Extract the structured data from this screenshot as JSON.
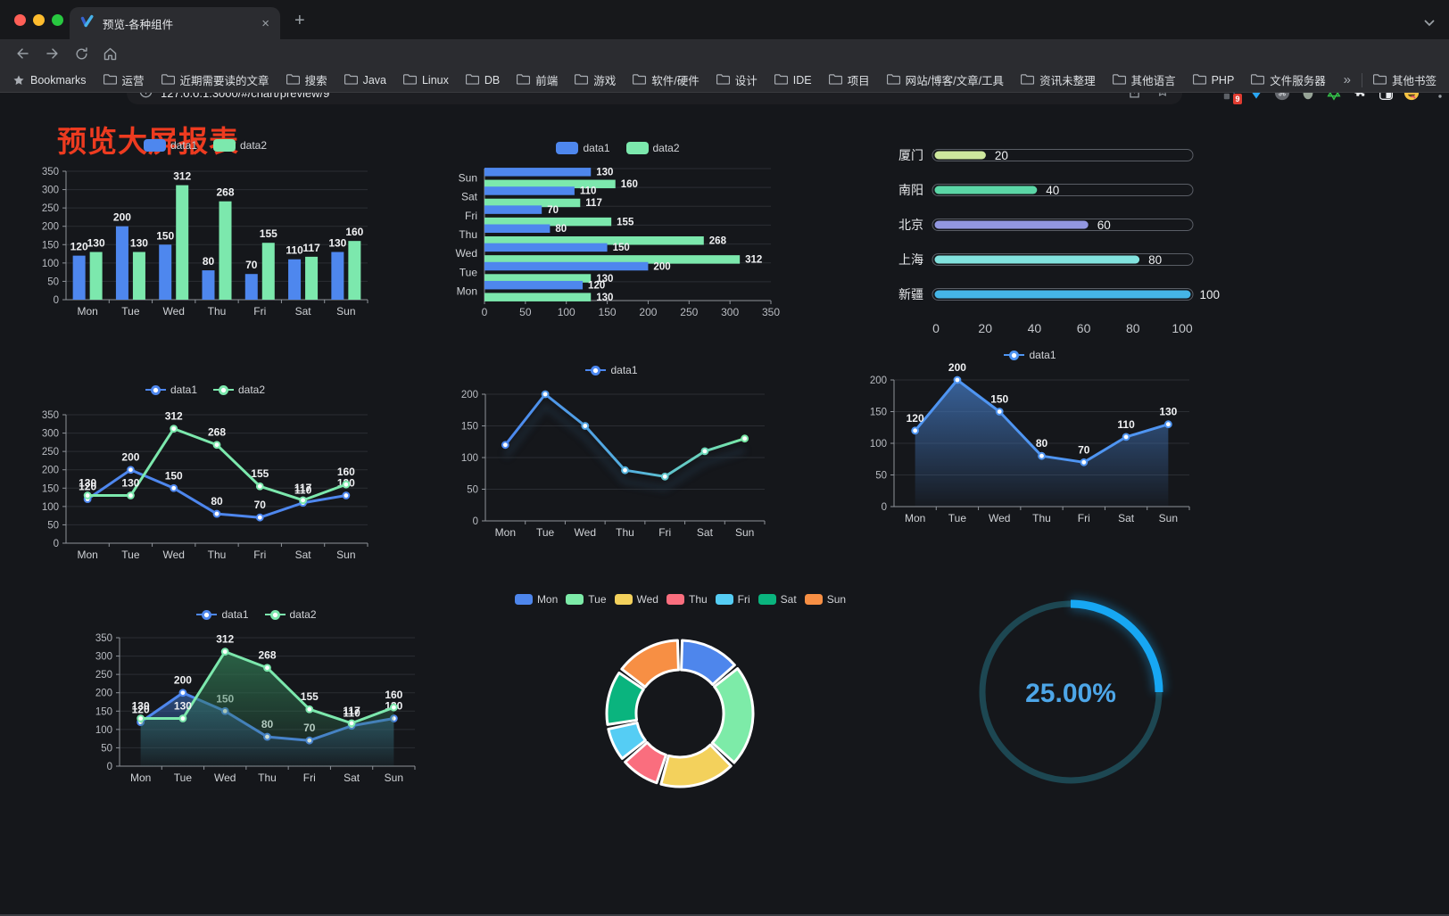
{
  "browser": {
    "tab_title": "预览-各种组件",
    "new_tab_button": "+",
    "close_tab": "×",
    "url": "127.0.0.1:3000/#/chart/preview/9",
    "extension_badge": "9",
    "bookmarks_bar": {
      "label": "Bookmarks",
      "folders": [
        "运营",
        "近期需要读的文章",
        "搜索",
        "Java",
        "Linux",
        "DB",
        "前端",
        "游戏",
        "软件/硬件",
        "设计",
        "IDE",
        "项目",
        "网站/博客/文章/工具",
        "资讯未整理",
        "其他语言",
        "PHP",
        "文件服务器"
      ],
      "overflow": "»",
      "other": "其他书签"
    }
  },
  "page": {
    "title": "预览大屏报表",
    "title_color": "#ed3b20",
    "background": "#15171b"
  },
  "chart_data": [
    {
      "id": "bar-grouped",
      "type": "bar",
      "orientation": "vertical",
      "categories": [
        "Mon",
        "Tue",
        "Wed",
        "Thu",
        "Fri",
        "Sat",
        "Sun"
      ],
      "series": [
        {
          "name": "data1",
          "color": "#4e87ee",
          "values": [
            120,
            200,
            150,
            80,
            70,
            110,
            130
          ]
        },
        {
          "name": "data2",
          "color": "#7ce8ad",
          "values": [
            130,
            130,
            312,
            268,
            155,
            117,
            160
          ]
        }
      ],
      "ylim": [
        0,
        350
      ],
      "ytick": 50,
      "value_labels": true,
      "legend": "rect",
      "grid": true
    },
    {
      "id": "bar-horizontal",
      "type": "bar",
      "orientation": "horizontal",
      "categories": [
        "Mon",
        "Tue",
        "Wed",
        "Thu",
        "Fri",
        "Sat",
        "Sun"
      ],
      "series": [
        {
          "name": "data1",
          "color": "#4e87ee",
          "values": [
            120,
            200,
            150,
            80,
            70,
            110,
            130
          ]
        },
        {
          "name": "data2",
          "color": "#7ce8ad",
          "values": [
            130,
            130,
            312,
            268,
            155,
            117,
            160
          ]
        }
      ],
      "xlim": [
        0,
        350
      ],
      "xtick": 50,
      "value_labels": true,
      "legend": "rect",
      "grid": true
    },
    {
      "id": "progress-list",
      "type": "bar",
      "orientation": "progress",
      "items": [
        {
          "label": "厦门",
          "value": 20,
          "color": "#cde79c"
        },
        {
          "label": "南阳",
          "value": 40,
          "color": "#5bd6a6"
        },
        {
          "label": "北京",
          "value": 60,
          "color": "#9297e0"
        },
        {
          "label": "上海",
          "value": 80,
          "color": "#82e2de"
        },
        {
          "label": "新疆",
          "value": 100,
          "color": "#45b5e6"
        }
      ],
      "xlim": [
        0,
        100
      ],
      "ticks": [
        0,
        20,
        40,
        60,
        80,
        100
      ]
    },
    {
      "id": "line-two",
      "type": "line",
      "categories": [
        "Mon",
        "Tue",
        "Wed",
        "Thu",
        "Fri",
        "Sat",
        "Sun"
      ],
      "series": [
        {
          "name": "data1",
          "color": "#4e87ee",
          "values": [
            120,
            200,
            150,
            80,
            70,
            110,
            130
          ],
          "labels": true
        },
        {
          "name": "data2",
          "color": "#7ce8ad",
          "values": [
            130,
            130,
            312,
            268,
            155,
            117,
            160
          ],
          "labels": true
        }
      ],
      "ylim": [
        0,
        350
      ],
      "ytick": 50,
      "legend": "line",
      "grid": true
    },
    {
      "id": "line-gradient",
      "type": "line",
      "categories": [
        "Mon",
        "Tue",
        "Wed",
        "Thu",
        "Fri",
        "Sat",
        "Sun"
      ],
      "series": [
        {
          "name": "data1",
          "color": "#4e87ee",
          "values": [
            120,
            200,
            150,
            80,
            70,
            110,
            130
          ],
          "gradient": [
            "#4b87f0",
            "#55b3dd",
            "#79e9a6"
          ],
          "labels": false
        }
      ],
      "ylim": [
        0,
        200
      ],
      "ytick": 50,
      "legend": "line",
      "grid": true,
      "shadow": true
    },
    {
      "id": "area-one",
      "type": "area",
      "categories": [
        "Mon",
        "Tue",
        "Wed",
        "Thu",
        "Fri",
        "Sat",
        "Sun"
      ],
      "series": [
        {
          "name": "data1",
          "color": "#4f95f2",
          "values": [
            120,
            200,
            150,
            80,
            70,
            110,
            130
          ],
          "area": [
            "rgba(62,110,175,0.85)",
            "rgba(62,110,175,0.04)"
          ],
          "labels": true
        }
      ],
      "ylim": [
        0,
        200
      ],
      "ytick": 50,
      "legend": "line",
      "grid": true
    },
    {
      "id": "area-two",
      "type": "area",
      "categories": [
        "Mon",
        "Tue",
        "Wed",
        "Thu",
        "Fri",
        "Sat",
        "Sun"
      ],
      "series": [
        {
          "name": "data1",
          "color": "#4e87ee",
          "values": [
            120,
            200,
            150,
            80,
            70,
            110,
            130
          ],
          "area": [
            "rgba(52,94,158,0.75)",
            "rgba(52,94,158,0.04)"
          ],
          "labels": true
        },
        {
          "name": "data2",
          "color": "#7ce8ad",
          "values": [
            130,
            130,
            312,
            268,
            155,
            117,
            160
          ],
          "area": [
            "rgba(47,116,80,0.8)",
            "rgba(47,116,80,0.05)"
          ],
          "labels": true
        }
      ],
      "ylim": [
        0,
        350
      ],
      "ytick": 50,
      "legend": "line",
      "grid": true
    },
    {
      "id": "donut",
      "type": "pie",
      "labels": [
        "Mon",
        "Tue",
        "Wed",
        "Thu",
        "Fri",
        "Sat",
        "Sun"
      ],
      "values": [
        120,
        200,
        150,
        80,
        70,
        110,
        130
      ],
      "colors": [
        "#4e86ec",
        "#7deba8",
        "#f3d15c",
        "#fa6e7e",
        "#55cdf4",
        "#0ab47e",
        "#f78f44"
      ],
      "legend": "rect",
      "legend_position": "top",
      "inner_radius_ratio": 0.6
    },
    {
      "id": "ring-progress",
      "type": "gauge",
      "value": 25,
      "display": "25.00%",
      "track_color": "#1d4752",
      "arc_color": "#17a7f3",
      "text_color": "#4da6e8"
    }
  ]
}
